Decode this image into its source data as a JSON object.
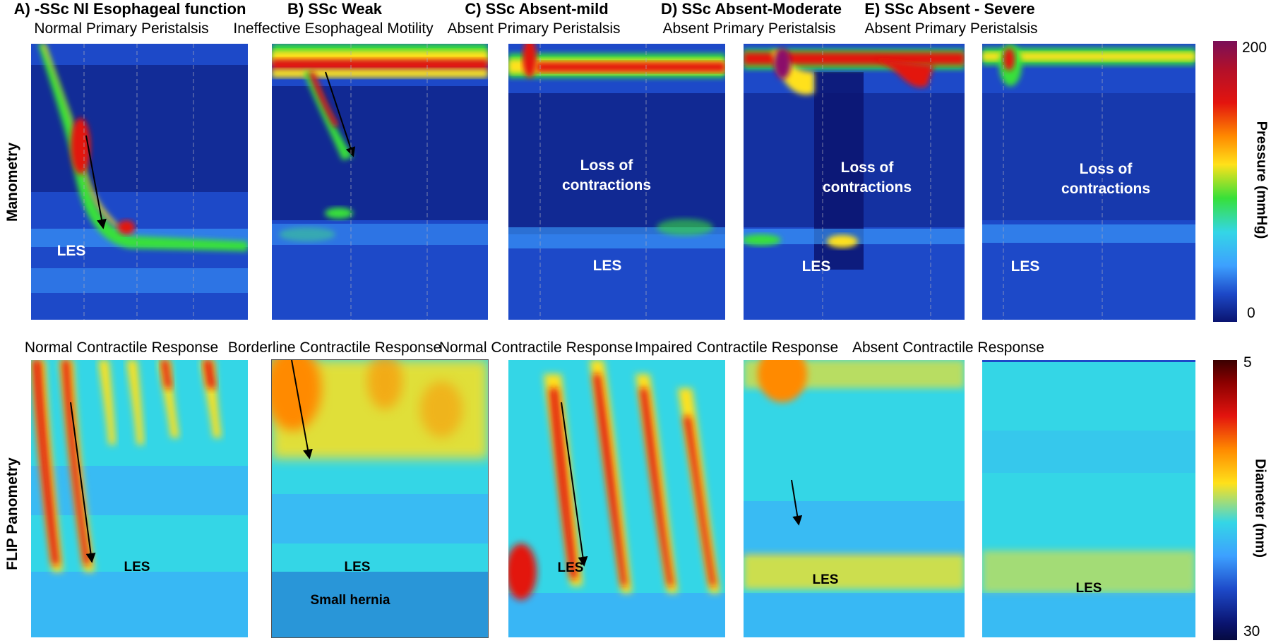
{
  "columns": [
    {
      "title": "A) -SSc Nl Esophageal function",
      "manometry_subtitle": "Normal Primary Peristalsis",
      "flip_subtitle": "Normal Contractile Response"
    },
    {
      "title": "B) SSc Weak",
      "manometry_subtitle": "Ineffective Esophageal Motility",
      "flip_subtitle": "Borderline Contractile Response"
    },
    {
      "title": "C) SSc Absent-mild",
      "manometry_subtitle": "Absent Primary Peristalsis",
      "flip_subtitle": "Normal Contractile Response"
    },
    {
      "title": "D) SSc Absent-Moderate",
      "manometry_subtitle": "Absent Primary Peristalsis",
      "flip_subtitle": "Impaired Contractile Response"
    },
    {
      "title": "E) SSc Absent - Severe",
      "manometry_subtitle": "Absent Primary Peristalsis",
      "flip_subtitle": "Absent Contractile Response"
    }
  ],
  "rows": {
    "manometry": "Manometry",
    "flip": "FLIP Panometry"
  },
  "annotations": {
    "les": "LES",
    "loss_line1": "Loss of",
    "loss_line2": "contractions",
    "small_hernia": "Small hernia"
  },
  "pressure_scale": {
    "title": "Pressure (mmHg)",
    "max": "200",
    "min": "0"
  },
  "diameter_scale": {
    "title": "Diameter (mm)",
    "top": "5",
    "bottom": "30"
  },
  "colors": {
    "deep_blue": "#0a1470",
    "blue": "#1d49c8",
    "light_blue": "#3da0ff",
    "cyan": "#34d6e6",
    "green": "#37e03a",
    "yellow": "#ffe11a",
    "orange": "#ff8a00",
    "red": "#e3140e",
    "dark_red": "#7a0000",
    "magenta": "#8b0f6a"
  }
}
